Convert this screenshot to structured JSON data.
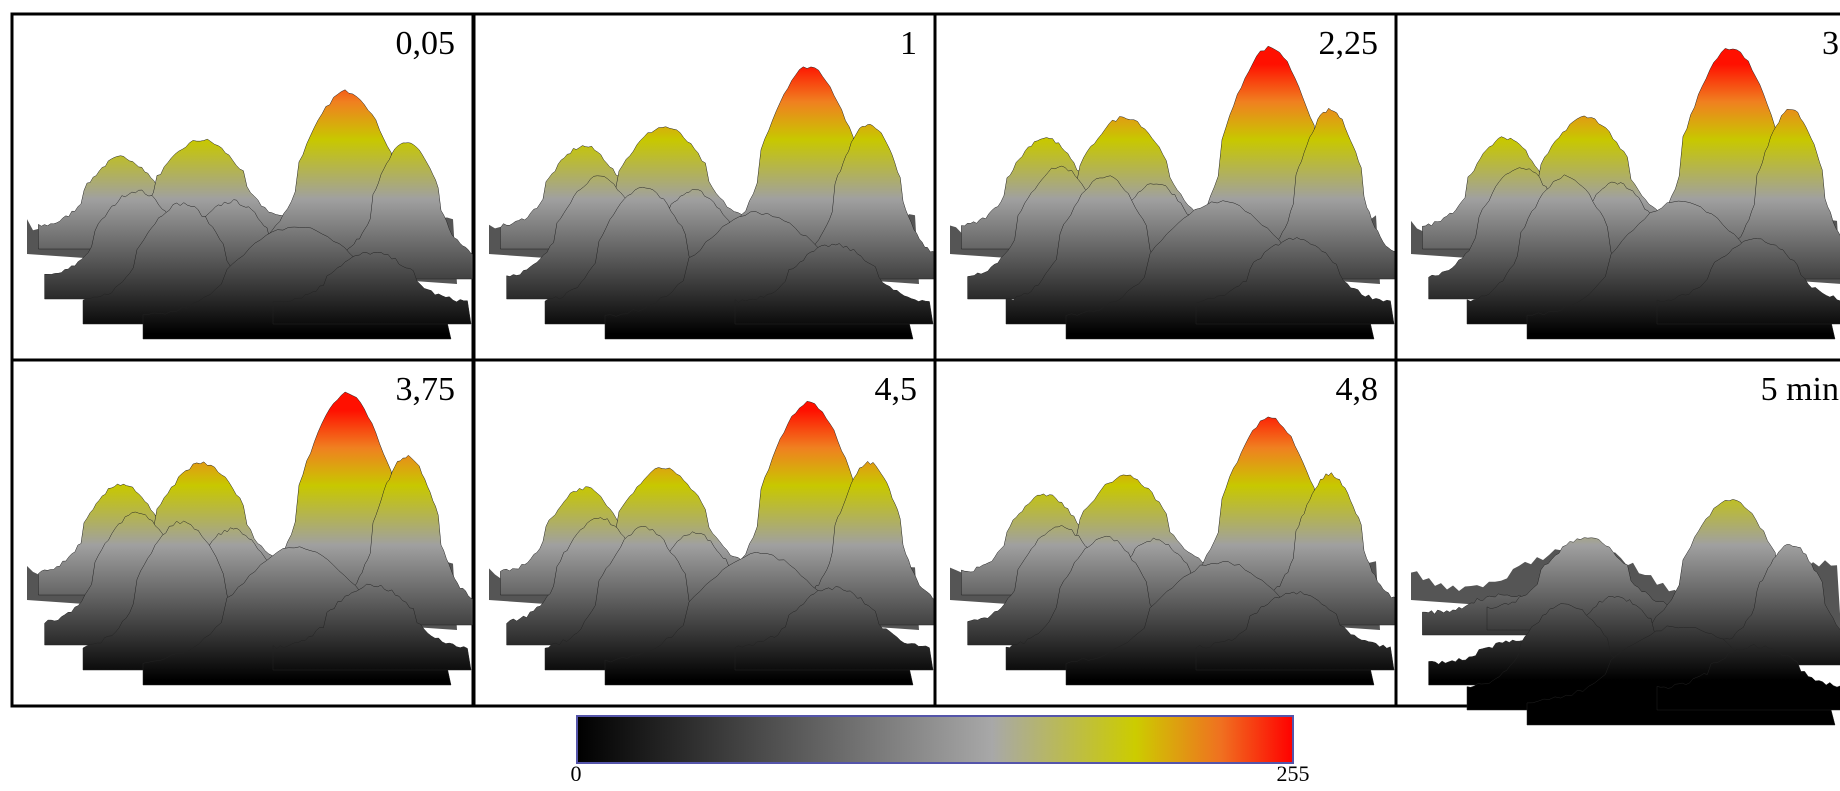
{
  "panels": [
    {
      "label": "0,05"
    },
    {
      "label": "1"
    },
    {
      "label": "2,25"
    },
    {
      "label": "3"
    },
    {
      "label": "3,75"
    },
    {
      "label": "4,5"
    },
    {
      "label": "4,8"
    },
    {
      "label": "5 min"
    }
  ],
  "colorbar": {
    "min": 0,
    "max": 255
  }
}
